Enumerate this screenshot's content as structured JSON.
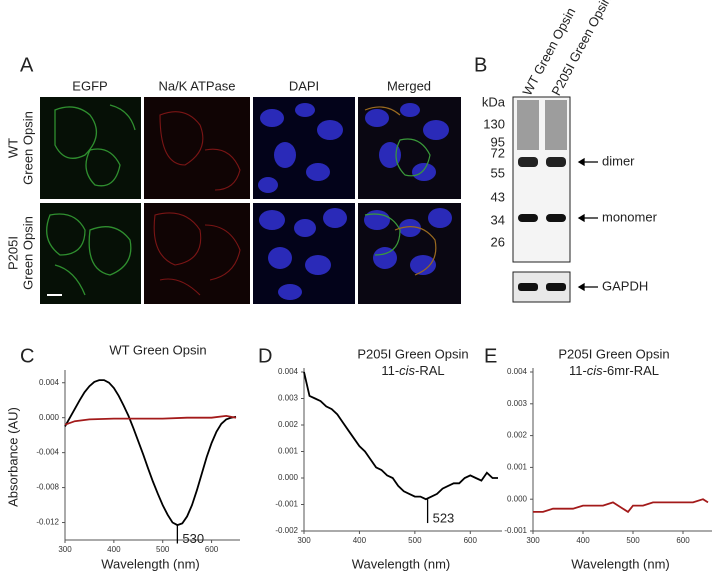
{
  "panels": {
    "A": {
      "label": "A",
      "columns": [
        "EGFP",
        "Na/K ATPase",
        "DAPI",
        "Merged"
      ],
      "rows": [
        [
          "WT",
          "Green Opsin"
        ],
        [
          "P205I",
          "Green Opsin"
        ]
      ]
    },
    "B": {
      "label": "B",
      "lanes": [
        "WT Green Opsin",
        "P205I Green Opsin"
      ],
      "unit": "kDa",
      "markers": [
        130,
        95,
        72,
        55,
        43,
        34,
        26
      ],
      "bands": [
        "dimer",
        "monomer",
        "GAPDH"
      ]
    },
    "C": {
      "label": "C"
    },
    "D": {
      "label": "D"
    },
    "E": {
      "label": "E"
    }
  },
  "chart_data": [
    {
      "type": "line",
      "title": "WT Green Opsin",
      "xlabel": "Wavelength (nm)",
      "ylabel": "Absorbance (AU)",
      "xlim": [
        300,
        650
      ],
      "ylim": [
        -0.014,
        0.005
      ],
      "xticks": [
        300,
        400,
        500,
        600
      ],
      "yticks": [
        {
          "value": 0.004,
          "label": "0.004"
        },
        {
          "value": 0.0,
          "label": "0.000"
        },
        {
          "value": -0.004,
          "label": "-0.004"
        },
        {
          "value": -0.008,
          "label": "-0.008"
        },
        {
          "value": -0.012,
          "label": "-0.012"
        }
      ],
      "series": [
        {
          "color": "#000000",
          "x": [
            300,
            310,
            320,
            330,
            340,
            350,
            360,
            370,
            380,
            390,
            400,
            410,
            420,
            430,
            440,
            450,
            460,
            470,
            480,
            490,
            500,
            510,
            520,
            530,
            540,
            550,
            560,
            570,
            580,
            590,
            600,
            610,
            620,
            630,
            640,
            650
          ],
          "values": [
            -0.001,
            0.0,
            0.001,
            0.002,
            0.0029,
            0.0036,
            0.0041,
            0.0043,
            0.0043,
            0.004,
            0.0034,
            0.0025,
            0.0014,
            0.0002,
            -0.0012,
            -0.0027,
            -0.0042,
            -0.0058,
            -0.0073,
            -0.0087,
            -0.01,
            -0.0111,
            -0.012,
            -0.0123,
            -0.0121,
            -0.0113,
            -0.01,
            -0.0083,
            -0.0064,
            -0.0045,
            -0.0029,
            -0.0016,
            -0.0007,
            -0.0002,
            0.0,
            0.0001
          ]
        },
        {
          "color": "#a31a1a",
          "x": [
            300,
            320,
            350,
            400,
            450,
            500,
            550,
            600,
            630,
            650
          ],
          "values": [
            -0.0008,
            -0.0004,
            -0.0002,
            -0.0001,
            -0.0001,
            -0.0001,
            0.0,
            0.0,
            0.0002,
            0.0
          ]
        }
      ],
      "annotations": [
        {
          "x": 530,
          "y": -0.0144,
          "text": "530"
        }
      ]
    },
    {
      "type": "line",
      "title": "P205I Green Opsin",
      "subtitle": [
        "11-",
        "cis",
        "-RAL"
      ],
      "xlabel": "Wavelength (nm)",
      "xlim": [
        300,
        650
      ],
      "ylim": [
        -0.002,
        0.004
      ],
      "xticks": [
        300,
        400,
        500,
        600
      ],
      "yticks": [
        {
          "value": 0.004,
          "label": "0.004"
        },
        {
          "value": 0.003,
          "label": "0.003"
        },
        {
          "value": 0.002,
          "label": "0.002"
        },
        {
          "value": 0.001,
          "label": "0.001"
        },
        {
          "value": 0.0,
          "label": "0.000"
        },
        {
          "value": -0.001,
          "label": "-0.001"
        },
        {
          "value": -0.002,
          "label": "-0.002"
        }
      ],
      "series": [
        {
          "color": "#000000",
          "x": [
            300,
            310,
            320,
            330,
            340,
            350,
            360,
            370,
            380,
            390,
            400,
            410,
            420,
            430,
            440,
            450,
            460,
            470,
            480,
            490,
            500,
            510,
            520,
            530,
            540,
            550,
            560,
            570,
            580,
            590,
            600,
            610,
            620,
            630,
            640,
            650
          ],
          "values": [
            0.004,
            0.0031,
            0.003,
            0.0029,
            0.0027,
            0.0026,
            0.0024,
            0.0021,
            0.0018,
            0.0015,
            0.0012,
            0.001,
            0.0007,
            0.0004,
            0.0003,
            0.0001,
            0.0,
            -0.0003,
            -0.0005,
            -0.0006,
            -0.0007,
            -0.0007,
            -0.0008,
            -0.0007,
            -0.0006,
            -0.0004,
            -0.0003,
            -0.0002,
            -0.0002,
            0.0,
            0.0001,
            0.0,
            -0.0001,
            0.0002,
            0.0,
            0.0
          ]
        }
      ],
      "annotations": [
        {
          "x": 523,
          "y": -0.0017,
          "text": "523"
        }
      ]
    },
    {
      "type": "line",
      "title": "P205I Green Opsin",
      "subtitle": [
        "11-",
        "cis",
        "-6mr-RAL"
      ],
      "xlabel": "Wavelength (nm)",
      "xlim": [
        300,
        650
      ],
      "ylim": [
        -0.001,
        0.004
      ],
      "xticks": [
        300,
        400,
        500,
        600
      ],
      "yticks": [
        {
          "value": 0.004,
          "label": "0.004"
        },
        {
          "value": 0.003,
          "label": "0.003"
        },
        {
          "value": 0.002,
          "label": "0.002"
        },
        {
          "value": 0.001,
          "label": "0.001"
        },
        {
          "value": 0.0,
          "label": "0.000"
        },
        {
          "value": -0.001,
          "label": "-0.001"
        }
      ],
      "series": [
        {
          "color": "#a31a1a",
          "x": [
            300,
            320,
            340,
            360,
            380,
            400,
            420,
            440,
            460,
            480,
            490,
            500,
            520,
            540,
            560,
            580,
            600,
            620,
            640,
            650
          ],
          "values": [
            -0.0004,
            -0.0004,
            -0.0003,
            -0.0003,
            -0.0003,
            -0.0002,
            -0.0002,
            -0.0002,
            -0.0001,
            -0.0003,
            -0.0004,
            -0.0002,
            -0.0002,
            -0.0001,
            -0.0001,
            -0.0001,
            -0.0001,
            -0.0001,
            0.0,
            -0.0001
          ]
        }
      ],
      "annotations": []
    }
  ]
}
